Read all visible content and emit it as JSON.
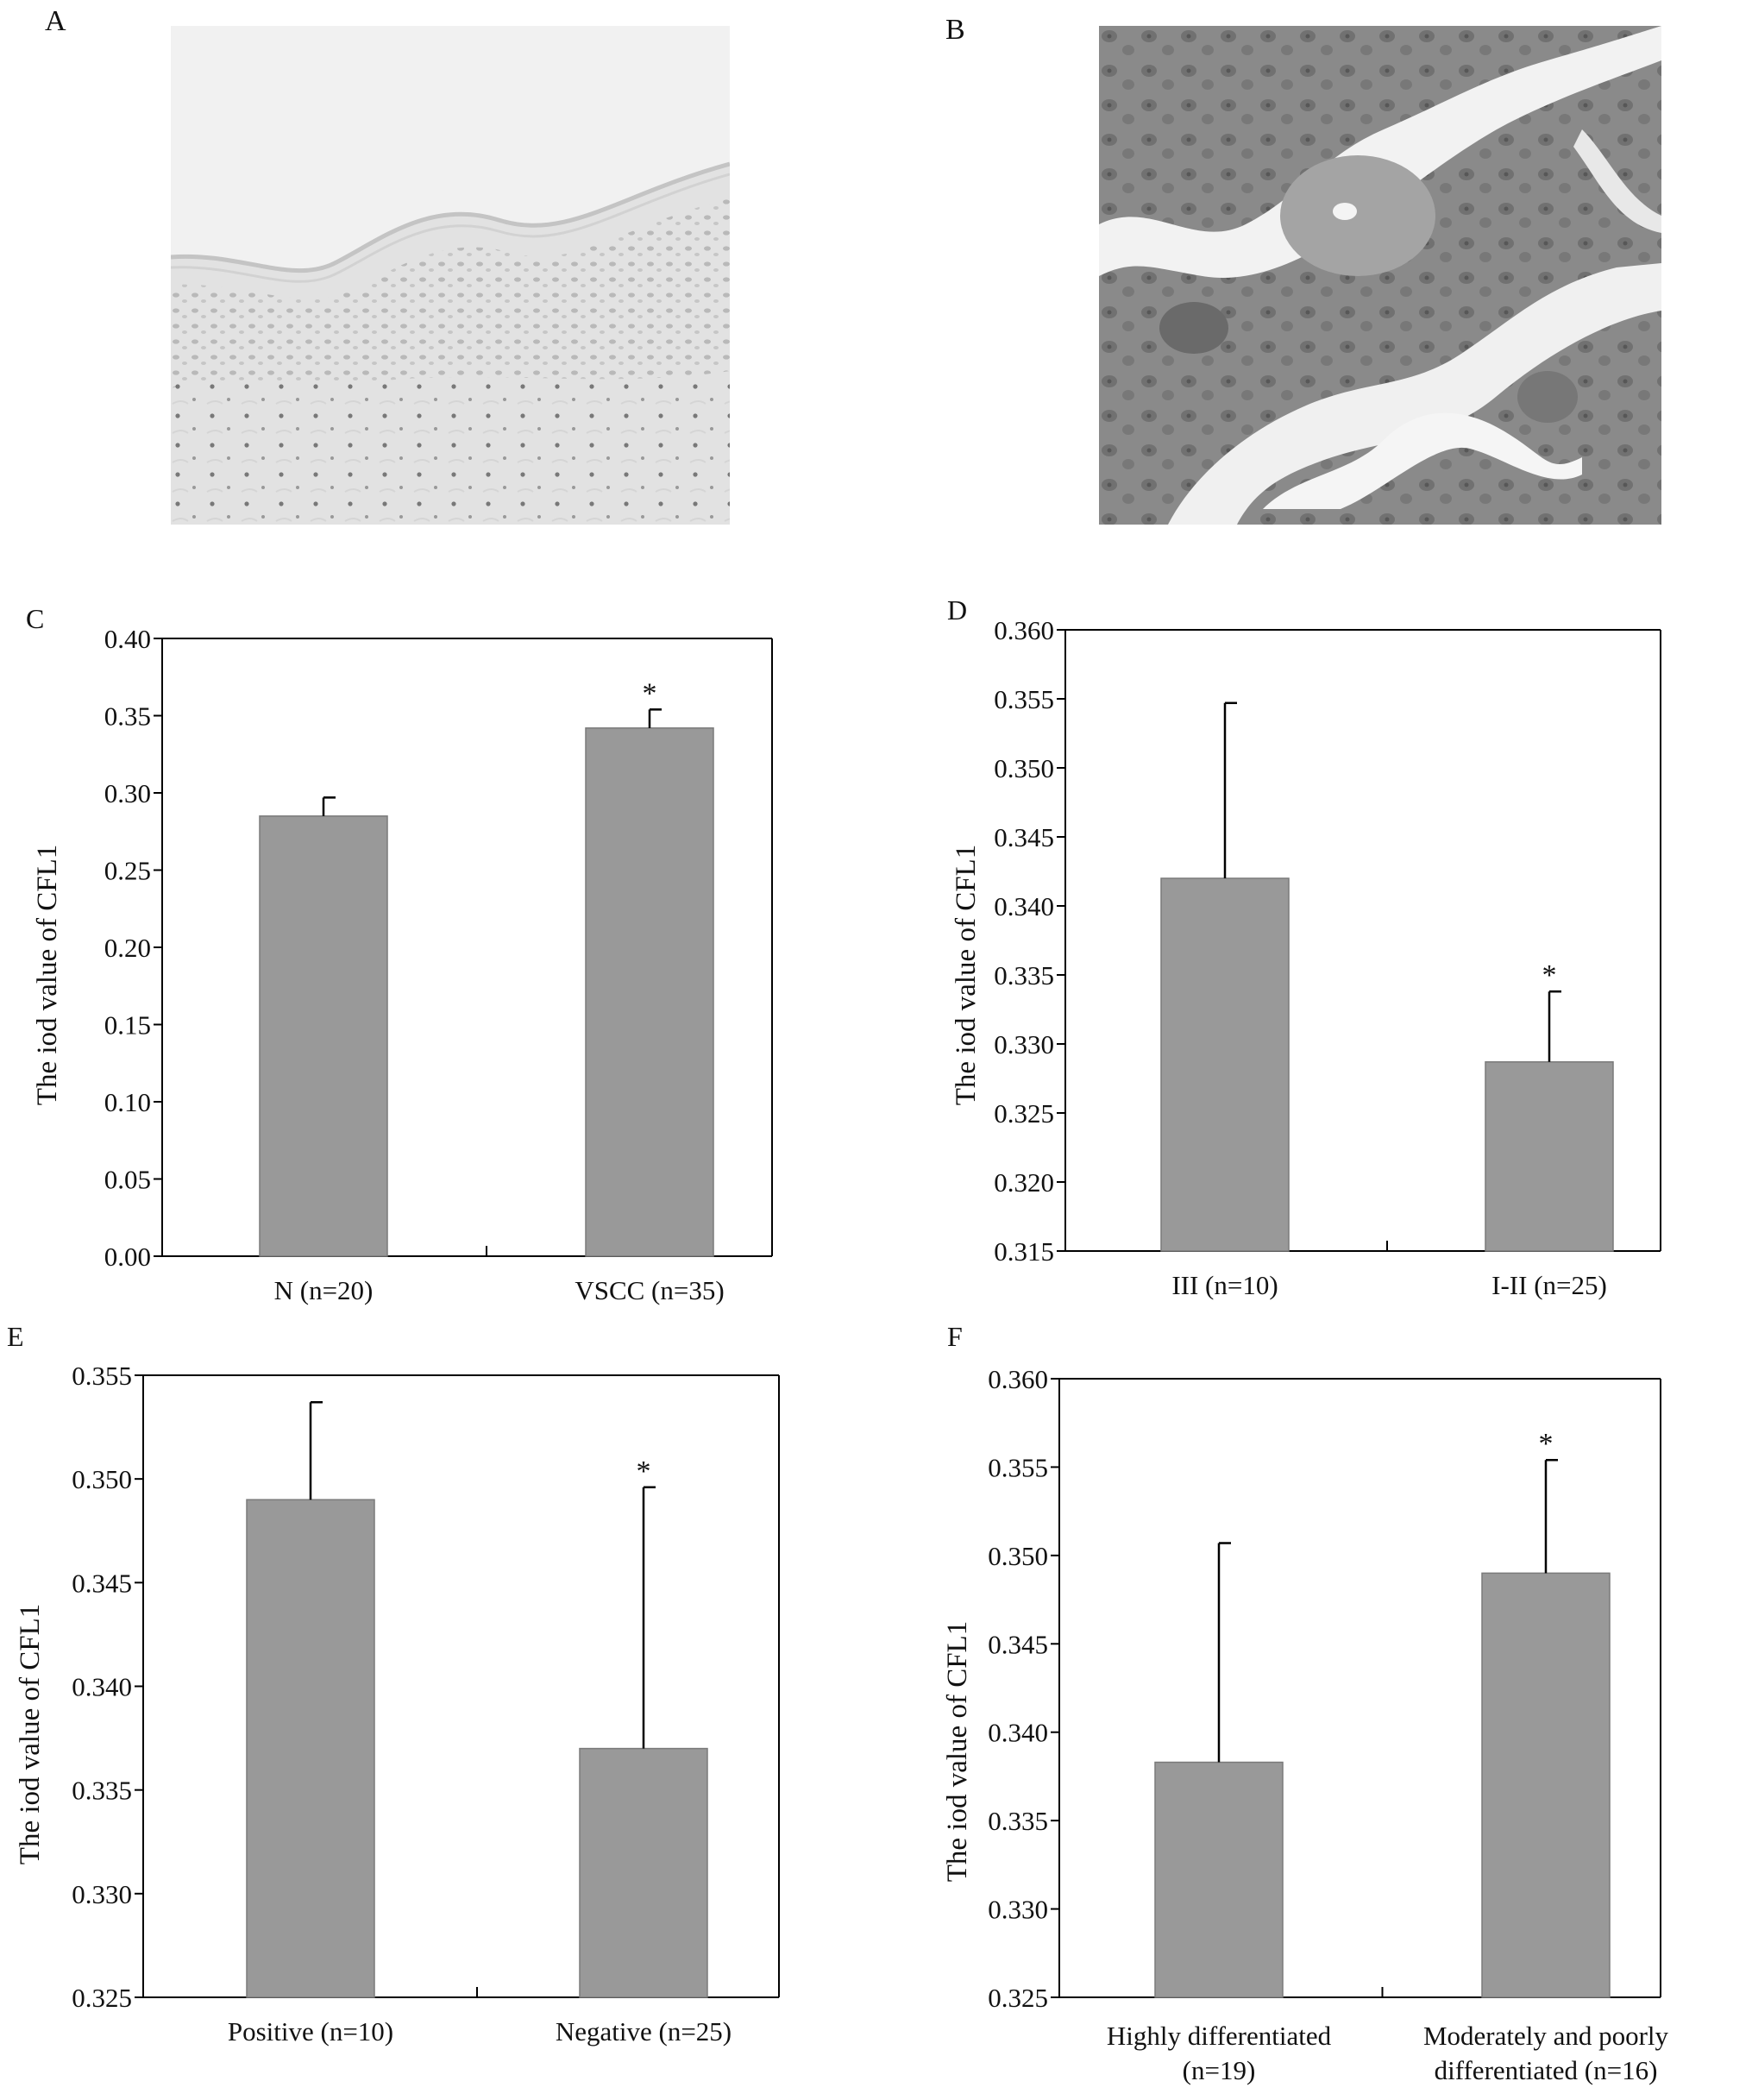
{
  "panels": {
    "A": "A",
    "B": "B"
  },
  "images": {
    "A": {
      "description": "normal vulvar skin IHC micrograph (light)",
      "tone": "#e9e9e9"
    },
    "B": {
      "description": "VSCC IHC micrograph (dark)",
      "tone": "#7a7a7a"
    }
  },
  "colors": {
    "bar": "#999999",
    "bar_edge": "#7a7a7a",
    "axis": "#000000"
  },
  "chart_data": [
    {
      "panel": "C",
      "type": "bar",
      "categories": [
        "N (n=20)",
        "VSCC (n=35)"
      ],
      "values": [
        0.285,
        0.342
      ],
      "errors": [
        0.012,
        0.012
      ],
      "significance": [
        "",
        "*"
      ],
      "ylabel": "The iod value of CFL1",
      "ylim": [
        0.0,
        0.4
      ],
      "yticks": [
        "0.00",
        "0.05",
        "0.10",
        "0.15",
        "0.20",
        "0.25",
        "0.30",
        "0.35",
        "0.40"
      ]
    },
    {
      "panel": "D",
      "type": "bar",
      "categories": [
        "III (n=10)",
        "I-II (n=25)"
      ],
      "values": [
        0.342,
        0.3287
      ],
      "errors": [
        0.0127,
        0.0051
      ],
      "significance": [
        "",
        "*"
      ],
      "ylabel": "The iod value of CFL1",
      "ylim": [
        0.315,
        0.36
      ],
      "yticks": [
        "0.315",
        "0.320",
        "0.325",
        "0.330",
        "0.335",
        "0.340",
        "0.345",
        "0.350",
        "0.355",
        "0.360"
      ]
    },
    {
      "panel": "E",
      "type": "bar",
      "categories": [
        "Positive (n=10)",
        "Negative (n=25)"
      ],
      "values": [
        0.349,
        0.337
      ],
      "errors": [
        0.0047,
        0.0126
      ],
      "significance": [
        "",
        "*"
      ],
      "ylabel": "The iod value of CFL1",
      "ylim": [
        0.325,
        0.355
      ],
      "yticks": [
        "0.325",
        "0.330",
        "0.335",
        "0.340",
        "0.345",
        "0.350",
        "0.355"
      ]
    },
    {
      "panel": "F",
      "type": "bar",
      "categories": [
        "Highly differentiated (n=19)",
        "Moderately and poorly differentiated (n=16)"
      ],
      "category_lines": [
        [
          "Highly differentiated",
          "(n=19)"
        ],
        [
          "Moderately and poorly",
          "differentiated (n=16)"
        ]
      ],
      "values": [
        0.3383,
        0.349
      ],
      "errors": [
        0.0124,
        0.0064
      ],
      "significance": [
        "",
        "*"
      ],
      "ylabel": "The iod value of CFL1",
      "ylim": [
        0.325,
        0.36
      ],
      "yticks": [
        "0.325",
        "0.330",
        "0.335",
        "0.340",
        "0.345",
        "0.350",
        "0.355",
        "0.360"
      ]
    }
  ]
}
